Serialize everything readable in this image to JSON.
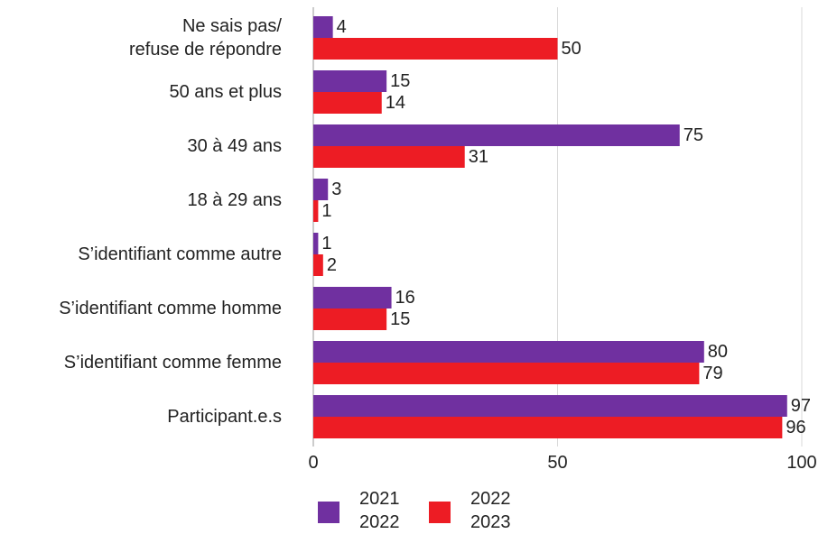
{
  "chart_data": {
    "type": "hbar",
    "categories": [
      "Ne sais pas/\nrefuse de répondre",
      "50 ans et plus",
      "30 à 49 ans",
      "18 à 29 ans",
      "S’identifiant comme autre",
      "S’identifiant comme homme",
      "S’identifiant comme femme",
      "Participant.e.s"
    ],
    "series": [
      {
        "name": "2021\n2022",
        "color": "#7030a0",
        "values": [
          4,
          15,
          75,
          3,
          1,
          16,
          80,
          97
        ]
      },
      {
        "name": "2022\n2023",
        "color": "#ed1c24",
        "values": [
          50,
          14,
          31,
          1,
          2,
          15,
          79,
          96
        ]
      }
    ],
    "xlim": [
      0,
      100
    ],
    "xticks": [
      0,
      50,
      100
    ],
    "grid": true
  }
}
